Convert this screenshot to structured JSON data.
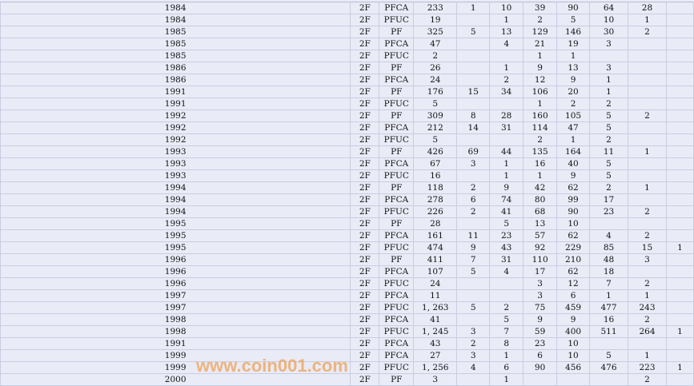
{
  "columns_count": 11,
  "rows": [
    [
      "1984",
      "2F",
      "PFCA",
      "233",
      "1",
      "10",
      "39",
      "90",
      "64",
      "28",
      ""
    ],
    [
      "1984",
      "2F",
      "PFUC",
      "19",
      "",
      "1",
      "2",
      "5",
      "10",
      "1",
      ""
    ],
    [
      "1985",
      "2F",
      "PF",
      "325",
      "5",
      "13",
      "129",
      "146",
      "30",
      "2",
      ""
    ],
    [
      "1985",
      "2F",
      "PFCA",
      "47",
      "",
      "4",
      "21",
      "19",
      "3",
      "",
      ""
    ],
    [
      "1985",
      "2F",
      "PFUC",
      "2",
      "",
      "",
      "1",
      "1",
      "",
      "",
      ""
    ],
    [
      "1986",
      "2F",
      "PF",
      "26",
      "",
      "1",
      "9",
      "13",
      "3",
      "",
      ""
    ],
    [
      "1986",
      "2F",
      "PFCA",
      "24",
      "",
      "2",
      "12",
      "9",
      "1",
      "",
      ""
    ],
    [
      "1991",
      "2F",
      "PF",
      "176",
      "15",
      "34",
      "106",
      "20",
      "1",
      "",
      ""
    ],
    [
      "1991",
      "2F",
      "PFUC",
      "5",
      "",
      "",
      "1",
      "2",
      "2",
      "",
      ""
    ],
    [
      "1992",
      "2F",
      "PF",
      "309",
      "8",
      "28",
      "160",
      "105",
      "5",
      "2",
      ""
    ],
    [
      "1992",
      "2F",
      "PFCA",
      "212",
      "14",
      "31",
      "114",
      "47",
      "5",
      "",
      ""
    ],
    [
      "1992",
      "2F",
      "PFUC",
      "5",
      "",
      "",
      "2",
      "1",
      "2",
      "",
      ""
    ],
    [
      "1993",
      "2F",
      "PF",
      "426",
      "69",
      "44",
      "135",
      "164",
      "11",
      "1",
      ""
    ],
    [
      "1993",
      "2F",
      "PFCA",
      "67",
      "3",
      "1",
      "16",
      "40",
      "5",
      "",
      ""
    ],
    [
      "1993",
      "2F",
      "PFUC",
      "16",
      "",
      "1",
      "1",
      "9",
      "5",
      "",
      ""
    ],
    [
      "1994",
      "2F",
      "PF",
      "118",
      "2",
      "9",
      "42",
      "62",
      "2",
      "1",
      ""
    ],
    [
      "1994",
      "2F",
      "PFCA",
      "278",
      "6",
      "74",
      "80",
      "99",
      "17",
      "",
      ""
    ],
    [
      "1994",
      "2F",
      "PFUC",
      "226",
      "2",
      "41",
      "68",
      "90",
      "23",
      "2",
      ""
    ],
    [
      "1995",
      "2F",
      "PF",
      "28",
      "",
      "5",
      "13",
      "10",
      "",
      "",
      ""
    ],
    [
      "1995",
      "2F",
      "PFCA",
      "161",
      "11",
      "23",
      "57",
      "62",
      "4",
      "2",
      ""
    ],
    [
      "1995",
      "2F",
      "PFUC",
      "474",
      "9",
      "43",
      "92",
      "229",
      "85",
      "15",
      "1"
    ],
    [
      "1996",
      "2F",
      "PF",
      "411",
      "7",
      "31",
      "110",
      "210",
      "48",
      "3",
      ""
    ],
    [
      "1996",
      "2F",
      "PFCA",
      "107",
      "5",
      "4",
      "17",
      "62",
      "18",
      "",
      ""
    ],
    [
      "1996",
      "2F",
      "PFUC",
      "24",
      "",
      "",
      "3",
      "12",
      "7",
      "2",
      ""
    ],
    [
      "1997",
      "2F",
      "PFCA",
      "11",
      "",
      "",
      "3",
      "6",
      "1",
      "1",
      ""
    ],
    [
      "1997",
      "2F",
      "PFUC",
      "1, 263",
      "5",
      "2",
      "75",
      "459",
      "477",
      "243",
      ""
    ],
    [
      "1998",
      "2F",
      "PFCA",
      "41",
      "",
      "5",
      "9",
      "9",
      "16",
      "2",
      ""
    ],
    [
      "1998",
      "2F",
      "PFUC",
      "1, 245",
      "3",
      "7",
      "59",
      "400",
      "511",
      "264",
      "1"
    ],
    [
      "1991",
      "2F",
      "PFCA",
      "43",
      "2",
      "8",
      "23",
      "10",
      "",
      "",
      ""
    ],
    [
      "1999",
      "2F",
      "PFCA",
      "27",
      "3",
      "1",
      "6",
      "10",
      "5",
      "1",
      ""
    ],
    [
      "1999",
      "2F",
      "PFUC",
      "1, 256",
      "4",
      "6",
      "90",
      "456",
      "476",
      "223",
      "1"
    ],
    [
      "2000",
      "2F",
      "PF",
      "3",
      "",
      "1",
      "",
      "",
      "",
      "2",
      ""
    ]
  ],
  "watermark": "www.coin001.com"
}
